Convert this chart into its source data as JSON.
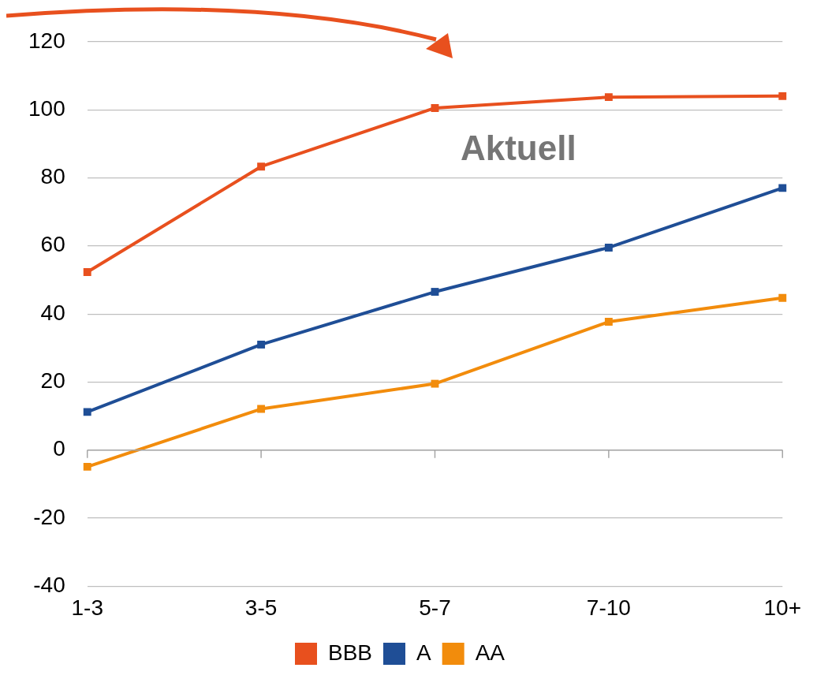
{
  "chart_data": {
    "type": "line",
    "categories": [
      "1-3",
      "3-5",
      "5-7",
      "7-10",
      "10+"
    ],
    "series": [
      {
        "name": "BBB",
        "color": "#e8501e",
        "values": [
          52.3,
          83.3,
          100.5,
          103.7,
          104
        ]
      },
      {
        "name": "A",
        "color": "#1f4e96",
        "values": [
          11.2,
          31,
          46.5,
          59.5,
          77
        ]
      },
      {
        "name": "AA",
        "color": "#f28c0c",
        "values": [
          -4.9,
          12.1,
          19.5,
          37.7,
          44.7
        ]
      }
    ],
    "ylim": [
      -40,
      120
    ],
    "yticks": [
      -40,
      -20,
      0,
      20,
      40,
      60,
      80,
      100,
      120
    ],
    "grid": "y",
    "legend": "bottom",
    "marker": "square",
    "line_style": "solid",
    "annotations": [
      "Aktuell"
    ]
  }
}
